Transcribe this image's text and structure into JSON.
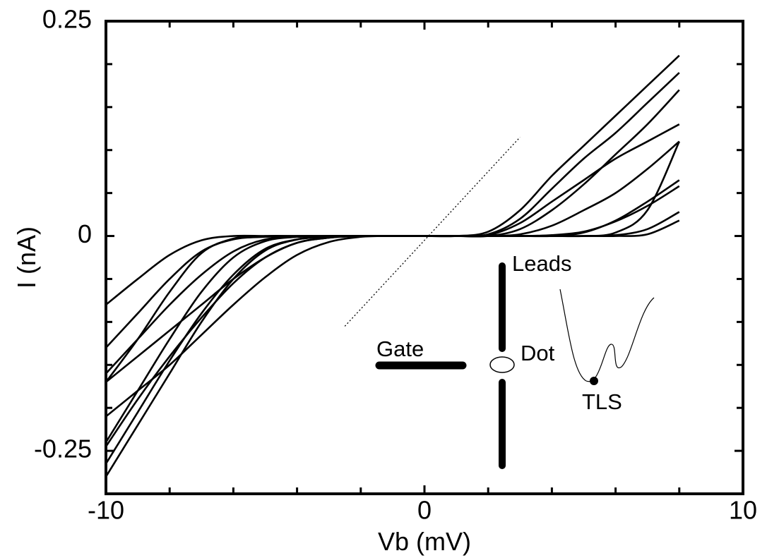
{
  "chart_data": {
    "type": "line",
    "x_label": "Vb (mV)",
    "y_label": "I (nA)",
    "xlim": [
      -10,
      10
    ],
    "ylim": [
      -0.3,
      0.25
    ],
    "xticks": [
      -10,
      0,
      10
    ],
    "yticks": [
      -0.25,
      0,
      0.25
    ],
    "xminor_ticks": [
      -8,
      -6,
      -4,
      -2,
      2,
      4,
      6,
      8
    ],
    "yminor_ticks": [
      -0.2,
      -0.15,
      -0.1,
      -0.05,
      0.05,
      0.1,
      0.15,
      0.2
    ],
    "x": [
      -10,
      -9,
      -8,
      -7,
      -6,
      -5,
      -4,
      -3,
      -2,
      -1,
      0,
      1,
      2,
      3,
      4,
      5,
      6,
      7,
      8
    ],
    "series": [
      {
        "color": "#000000",
        "values": [
          -0.28,
          -0.22,
          -0.16,
          -0.1,
          -0.05,
          -0.017,
          -0.004,
          -0.001,
          0,
          0,
          0,
          0,
          0,
          0,
          0.001,
          0.005,
          0.017,
          0.035,
          0.058
        ]
      },
      {
        "color": "#000000",
        "values": [
          -0.265,
          -0.205,
          -0.145,
          -0.09,
          -0.045,
          -0.015,
          -0.004,
          -0.001,
          0,
          0,
          0,
          0,
          0.005,
          0.03,
          0.07,
          0.105,
          0.14,
          0.175,
          0.21
        ]
      },
      {
        "color": "#000000",
        "values": [
          -0.245,
          -0.19,
          -0.14,
          -0.095,
          -0.055,
          -0.025,
          -0.008,
          -0.002,
          0,
          0,
          0,
          0,
          0.002,
          0.02,
          0.055,
          0.09,
          0.12,
          0.155,
          0.19
        ]
      },
      {
        "color": "#000000",
        "values": [
          -0.21,
          -0.18,
          -0.15,
          -0.115,
          -0.08,
          -0.048,
          -0.022,
          -0.007,
          -0.001,
          0,
          0,
          0,
          0,
          0.008,
          0.03,
          0.06,
          0.095,
          0.13,
          0.17
        ]
      },
      {
        "color": "#000000",
        "values": [
          -0.17,
          -0.12,
          -0.065,
          -0.02,
          -0.003,
          0,
          0,
          0,
          0,
          0,
          0,
          0,
          0,
          0,
          0,
          0,
          0.001,
          0.008,
          0.028
        ]
      },
      {
        "color": "#000000",
        "values": [
          -0.13,
          -0.09,
          -0.05,
          -0.018,
          -0.004,
          -0.001,
          0,
          0,
          0,
          0,
          0,
          0,
          0,
          0,
          0,
          0,
          0,
          0.002,
          0.018
        ]
      },
      {
        "color": "#000000",
        "values": [
          -0.08,
          -0.05,
          -0.022,
          -0.005,
          0,
          0,
          0,
          0,
          0,
          0,
          0,
          0,
          0,
          0,
          0,
          0.004,
          0.018,
          0.04,
          0.065
        ]
      },
      {
        "color": "#000000",
        "values": [
          -0.17,
          -0.14,
          -0.11,
          -0.08,
          -0.05,
          -0.025,
          -0.008,
          -0.002,
          0,
          0,
          0,
          0,
          0,
          0.002,
          0.012,
          0.03,
          0.05,
          0.078,
          0.11
        ]
      },
      {
        "color": "#000000",
        "values": [
          -0.16,
          -0.12,
          -0.08,
          -0.045,
          -0.018,
          -0.004,
          -0.001,
          0,
          0,
          0,
          0,
          0,
          0.001,
          0.015,
          0.04,
          0.065,
          0.09,
          0.11,
          0.13
        ]
      },
      {
        "color": "#000000",
        "values": [
          -0.24,
          -0.18,
          -0.12,
          -0.065,
          -0.025,
          -0.006,
          -0.001,
          0,
          0,
          0,
          0,
          0,
          0,
          0,
          0,
          0,
          0.004,
          0.03,
          0.11
        ]
      }
    ],
    "reference_line": {
      "x": [
        -2.5,
        3
      ],
      "values": [
        -0.105,
        0.115
      ],
      "style": "dotted"
    },
    "annotations": [
      "Leads",
      "Gate",
      "Dot",
      "TLS"
    ]
  }
}
